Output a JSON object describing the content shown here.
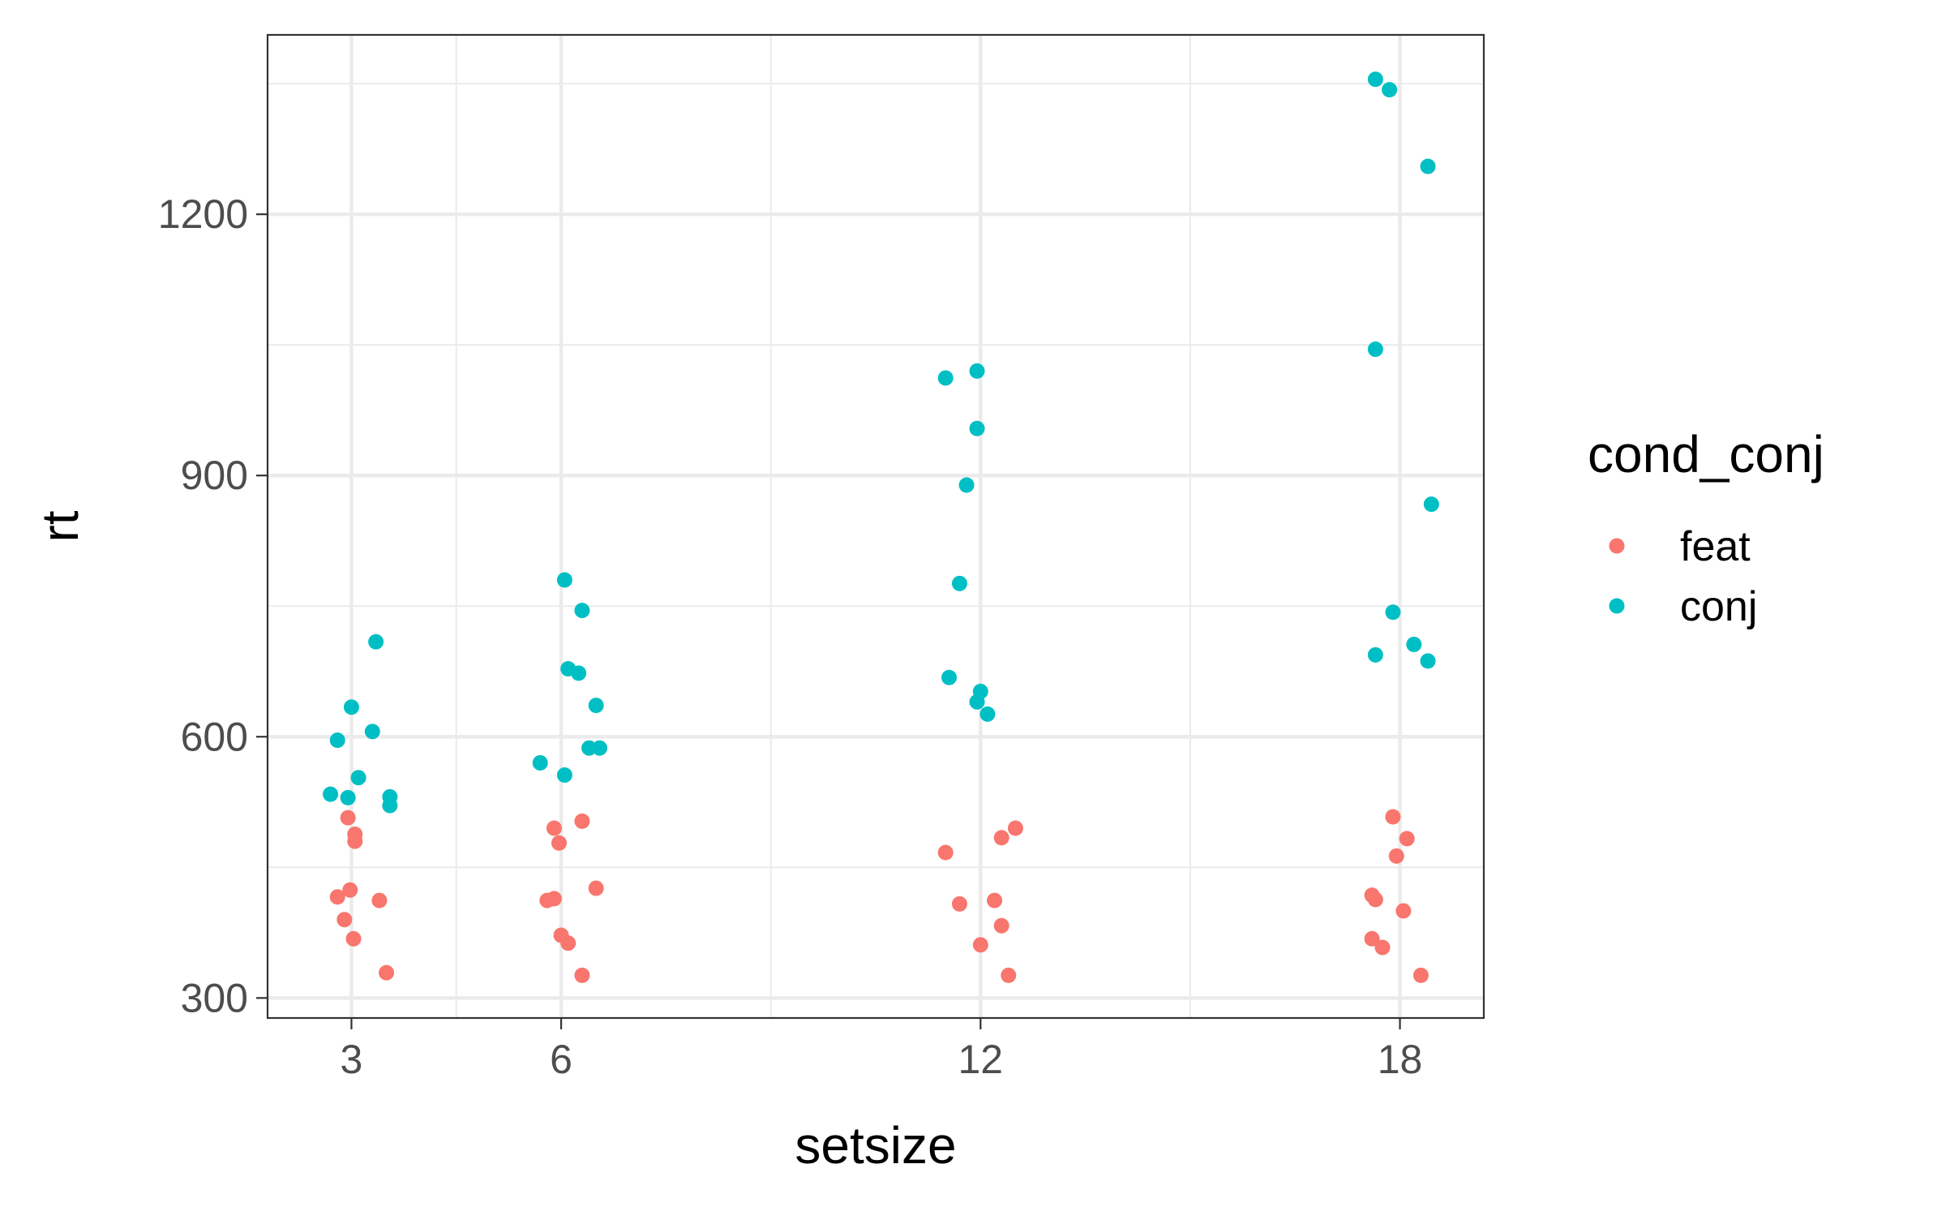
{
  "chart_data": {
    "type": "scatter",
    "title": "",
    "xlabel": "setsize",
    "ylabel": "rt",
    "x_ticks": [
      "3",
      "6",
      "12",
      "18"
    ],
    "y_ticks": [
      "300",
      "600",
      "900",
      "1200"
    ],
    "xlim": [
      1.8,
      19.2
    ],
    "ylim": [
      277,
      1406
    ],
    "grid": true,
    "legend": {
      "title": "cond_conj",
      "position": "right",
      "entries": [
        {
          "label": "feat",
          "color": "#F8766D"
        },
        {
          "label": "conj",
          "color": "#00BFC4"
        }
      ]
    },
    "series": [
      {
        "name": "feat",
        "color": "#F8766D",
        "points": [
          {
            "x": 2.8,
            "y": 416
          },
          {
            "x": 2.9,
            "y": 390
          },
          {
            "x": 2.95,
            "y": 507
          },
          {
            "x": 2.98,
            "y": 424
          },
          {
            "x": 3.05,
            "y": 488
          },
          {
            "x": 3.05,
            "y": 480
          },
          {
            "x": 3.03,
            "y": 368
          },
          {
            "x": 3.4,
            "y": 412
          },
          {
            "x": 3.5,
            "y": 329
          },
          {
            "x": 5.8,
            "y": 412
          },
          {
            "x": 5.9,
            "y": 414
          },
          {
            "x": 5.9,
            "y": 495
          },
          {
            "x": 5.97,
            "y": 478
          },
          {
            "x": 6.0,
            "y": 372
          },
          {
            "x": 6.1,
            "y": 363
          },
          {
            "x": 6.3,
            "y": 503
          },
          {
            "x": 6.3,
            "y": 326
          },
          {
            "x": 6.5,
            "y": 426
          },
          {
            "x": 11.5,
            "y": 467
          },
          {
            "x": 11.7,
            "y": 408
          },
          {
            "x": 12.0,
            "y": 361
          },
          {
            "x": 12.2,
            "y": 412
          },
          {
            "x": 12.3,
            "y": 484
          },
          {
            "x": 12.3,
            "y": 383
          },
          {
            "x": 12.4,
            "y": 326
          },
          {
            "x": 12.5,
            "y": 495
          },
          {
            "x": 17.6,
            "y": 418
          },
          {
            "x": 17.6,
            "y": 368
          },
          {
            "x": 17.65,
            "y": 413
          },
          {
            "x": 17.75,
            "y": 358
          },
          {
            "x": 17.9,
            "y": 508
          },
          {
            "x": 17.95,
            "y": 463
          },
          {
            "x": 18.05,
            "y": 400
          },
          {
            "x": 18.1,
            "y": 483
          },
          {
            "x": 18.3,
            "y": 326
          }
        ]
      },
      {
        "name": "conj",
        "color": "#00BFC4",
        "points": [
          {
            "x": 2.7,
            "y": 534
          },
          {
            "x": 3.0,
            "y": 634
          },
          {
            "x": 2.8,
            "y": 596
          },
          {
            "x": 2.95,
            "y": 530
          },
          {
            "x": 3.1,
            "y": 553
          },
          {
            "x": 3.3,
            "y": 606
          },
          {
            "x": 3.35,
            "y": 709
          },
          {
            "x": 3.55,
            "y": 531
          },
          {
            "x": 3.55,
            "y": 521
          },
          {
            "x": 5.7,
            "y": 570
          },
          {
            "x": 6.05,
            "y": 556
          },
          {
            "x": 6.05,
            "y": 780
          },
          {
            "x": 6.1,
            "y": 678
          },
          {
            "x": 6.25,
            "y": 673
          },
          {
            "x": 6.3,
            "y": 745
          },
          {
            "x": 6.4,
            "y": 587
          },
          {
            "x": 6.5,
            "y": 636
          },
          {
            "x": 6.55,
            "y": 587
          },
          {
            "x": 11.5,
            "y": 1012
          },
          {
            "x": 11.55,
            "y": 668
          },
          {
            "x": 11.7,
            "y": 776
          },
          {
            "x": 11.8,
            "y": 889
          },
          {
            "x": 11.95,
            "y": 1020
          },
          {
            "x": 11.95,
            "y": 954
          },
          {
            "x": 11.95,
            "y": 640
          },
          {
            "x": 12.0,
            "y": 652
          },
          {
            "x": 12.1,
            "y": 626
          },
          {
            "x": 17.65,
            "y": 1045
          },
          {
            "x": 17.65,
            "y": 1355
          },
          {
            "x": 17.65,
            "y": 694
          },
          {
            "x": 17.85,
            "y": 1343
          },
          {
            "x": 17.9,
            "y": 743
          },
          {
            "x": 18.2,
            "y": 706
          },
          {
            "x": 18.4,
            "y": 1255
          },
          {
            "x": 18.45,
            "y": 867
          },
          {
            "x": 18.4,
            "y": 687
          }
        ]
      }
    ]
  }
}
